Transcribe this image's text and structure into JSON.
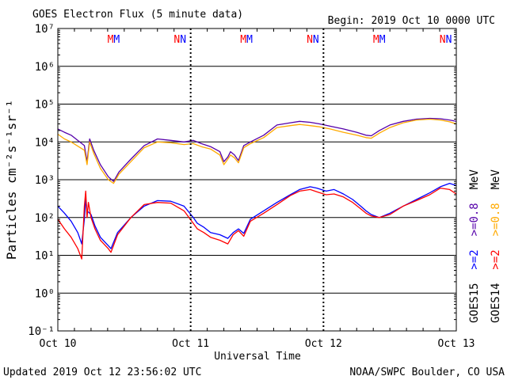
{
  "header": {
    "title": "GOES Electron Flux (5 minute data)",
    "begin": "Begin: 2019 Oct 10 0000 UTC"
  },
  "footer": {
    "updated": "Updated 2019 Oct 12 23:56:02 UTC",
    "credit": "NOAA/SWPC Boulder, CO USA"
  },
  "colors": {
    "goes15_high": "#5500aa",
    "goes14_high": "#ffaa00",
    "goes15_low": "#0000ff",
    "goes14_low": "#ff0000",
    "alert_line": "#000000"
  },
  "markers": [
    {
      "day": 0.42,
      "labels": [
        {
          "text": "M",
          "color": "#ff0000"
        },
        {
          "text": "M",
          "color": "#0000ff"
        }
      ]
    },
    {
      "day": 0.92,
      "labels": [
        {
          "text": "N",
          "color": "#ff0000"
        },
        {
          "text": "N",
          "color": "#0000ff"
        }
      ]
    },
    {
      "day": 1.42,
      "labels": [
        {
          "text": "M",
          "color": "#ff0000"
        },
        {
          "text": "M",
          "color": "#0000ff"
        }
      ]
    },
    {
      "day": 1.92,
      "labels": [
        {
          "text": "N",
          "color": "#ff0000"
        },
        {
          "text": "N",
          "color": "#0000ff"
        }
      ]
    },
    {
      "day": 2.42,
      "labels": [
        {
          "text": "M",
          "color": "#ff0000"
        },
        {
          "text": "M",
          "color": "#0000ff"
        }
      ]
    },
    {
      "day": 2.92,
      "labels": [
        {
          "text": "N",
          "color": "#ff0000"
        },
        {
          "text": "N",
          "color": "#0000ff"
        }
      ]
    }
  ],
  "right_legend": {
    "col1": [
      {
        "text": "GOES15",
        "color": "#000000"
      },
      {
        "text": ">=2",
        "color": "#0000ff"
      },
      {
        "text": ">=0.8",
        "color": "#5500aa"
      },
      {
        "text": "MeV",
        "color": "#000000"
      }
    ],
    "col2": [
      {
        "text": "GOES14",
        "color": "#000000"
      },
      {
        "text": ">=2",
        "color": "#ff0000"
      },
      {
        "text": ">=0.8",
        "color": "#ffaa00"
      },
      {
        "text": "MeV",
        "color": "#000000"
      }
    ]
  },
  "chart_data": {
    "type": "line",
    "title": "GOES Electron Flux (5 minute data)",
    "xlabel": "Universal Time",
    "ylabel": "Particles cm⁻²s⁻¹sr⁻¹",
    "x_ticks": [
      {
        "day": 0,
        "label": "Oct 10"
      },
      {
        "day": 1,
        "label": "Oct 11"
      },
      {
        "day": 2,
        "label": "Oct 12"
      },
      {
        "day": 3,
        "label": "Oct 13"
      }
    ],
    "xlim": [
      0,
      3
    ],
    "y_scale": "log",
    "ylim": [
      0.1,
      10000000
    ],
    "y_ticks": [
      {
        "exp": 7,
        "label": "10⁷"
      },
      {
        "exp": 6,
        "label": "10⁶"
      },
      {
        "exp": 5,
        "label": "10⁵"
      },
      {
        "exp": 4,
        "label": "10⁴"
      },
      {
        "exp": 3,
        "label": "10³"
      },
      {
        "exp": 2,
        "label": "10²"
      },
      {
        "exp": 1,
        "label": "10¹"
      },
      {
        "exp": 0,
        "label": "10⁰"
      },
      {
        "exp": -1,
        "label": "10⁻¹"
      }
    ],
    "grid": "horizontal",
    "alert_threshold": 1000,
    "series": [
      {
        "name": "GOES15 >=0.8 MeV",
        "color": "#5500aa",
        "x": [
          0.0,
          0.05,
          0.1,
          0.2,
          0.22,
          0.24,
          0.27,
          0.32,
          0.38,
          0.42,
          0.46,
          0.55,
          0.65,
          0.75,
          0.85,
          0.95,
          1.02,
          1.08,
          1.15,
          1.22,
          1.25,
          1.28,
          1.3,
          1.33,
          1.36,
          1.4,
          1.45,
          1.55,
          1.65,
          1.75,
          1.82,
          1.9,
          1.97,
          2.05,
          2.15,
          2.25,
          2.32,
          2.36,
          2.42,
          2.5,
          2.6,
          2.7,
          2.8,
          2.88,
          2.95,
          3.0
        ],
        "y": [
          22000,
          18000,
          15000,
          8000,
          3000,
          12000,
          6000,
          2500,
          1200,
          900,
          1600,
          3500,
          8000,
          12000,
          11000,
          10000,
          11000,
          9000,
          7500,
          5500,
          3000,
          4000,
          5500,
          4500,
          3200,
          8000,
          10000,
          15000,
          28000,
          32000,
          35000,
          33000,
          30000,
          26000,
          22000,
          18000,
          15000,
          14500,
          20000,
          28000,
          35000,
          40000,
          42000,
          41000,
          38000,
          35000
        ]
      },
      {
        "name": "GOES14 >=0.8 MeV",
        "color": "#ffaa00",
        "x": [
          0.0,
          0.05,
          0.1,
          0.2,
          0.22,
          0.24,
          0.27,
          0.32,
          0.38,
          0.42,
          0.46,
          0.55,
          0.65,
          0.75,
          0.85,
          0.95,
          1.02,
          1.08,
          1.15,
          1.22,
          1.25,
          1.28,
          1.3,
          1.33,
          1.36,
          1.4,
          1.45,
          1.55,
          1.65,
          1.75,
          1.82,
          1.9,
          1.97,
          2.05,
          2.15,
          2.25,
          2.32,
          2.36,
          2.42,
          2.5,
          2.6,
          2.7,
          2.8,
          2.88,
          2.95,
          3.0
        ],
        "y": [
          16000,
          12000,
          10000,
          6000,
          2500,
          10000,
          5000,
          2000,
          1000,
          800,
          1400,
          3000,
          7000,
          10000,
          9500,
          8500,
          9000,
          7500,
          6500,
          4500,
          2500,
          3500,
          4500,
          3800,
          2800,
          7000,
          9000,
          13000,
          24000,
          27000,
          29000,
          27000,
          25000,
          22000,
          18000,
          15000,
          13000,
          12500,
          17000,
          24000,
          32000,
          38000,
          40000,
          38000,
          34000,
          30000
        ]
      },
      {
        "name": "GOES15 >=2 MeV",
        "color": "#0000ff",
        "x": [
          0.0,
          0.05,
          0.1,
          0.15,
          0.18,
          0.2,
          0.21,
          0.22,
          0.25,
          0.28,
          0.32,
          0.38,
          0.4,
          0.45,
          0.55,
          0.65,
          0.75,
          0.85,
          0.95,
          1.02,
          1.05,
          1.1,
          1.15,
          1.22,
          1.28,
          1.32,
          1.36,
          1.4,
          1.45,
          1.55,
          1.65,
          1.75,
          1.82,
          1.9,
          1.95,
          2.02,
          2.08,
          2.15,
          2.22,
          2.28,
          2.32,
          2.36,
          2.42,
          2.5,
          2.6,
          2.7,
          2.8,
          2.88,
          2.95,
          3.0
        ],
        "y": [
          200,
          130,
          80,
          40,
          20,
          90,
          300,
          150,
          120,
          60,
          30,
          18,
          15,
          40,
          100,
          200,
          280,
          270,
          200,
          100,
          70,
          55,
          40,
          35,
          28,
          40,
          50,
          38,
          90,
          150,
          250,
          400,
          550,
          650,
          600,
          500,
          550,
          420,
          300,
          200,
          150,
          120,
          100,
          130,
          200,
          300,
          450,
          650,
          800,
          700
        ]
      },
      {
        "name": "GOES14 >=2 MeV",
        "color": "#ff0000",
        "x": [
          0.0,
          0.05,
          0.1,
          0.15,
          0.18,
          0.2,
          0.21,
          0.22,
          0.23,
          0.25,
          0.28,
          0.32,
          0.38,
          0.4,
          0.45,
          0.55,
          0.65,
          0.75,
          0.85,
          0.95,
          1.02,
          1.05,
          1.1,
          1.15,
          1.22,
          1.28,
          1.32,
          1.36,
          1.4,
          1.45,
          1.55,
          1.65,
          1.75,
          1.82,
          1.9,
          1.95,
          2.02,
          2.08,
          2.15,
          2.22,
          2.28,
          2.32,
          2.36,
          2.42,
          2.5,
          2.6,
          2.7,
          2.8,
          2.88,
          2.95,
          3.0
        ],
        "y": [
          90,
          50,
          30,
          15,
          8,
          200,
          500,
          100,
          250,
          100,
          50,
          25,
          15,
          12,
          35,
          100,
          220,
          250,
          240,
          150,
          70,
          50,
          40,
          30,
          25,
          20,
          35,
          45,
          32,
          80,
          130,
          220,
          380,
          500,
          550,
          480,
          400,
          420,
          350,
          250,
          170,
          130,
          110,
          100,
          120,
          200,
          280,
          400,
          600,
          550,
          420
        ]
      }
    ]
  }
}
